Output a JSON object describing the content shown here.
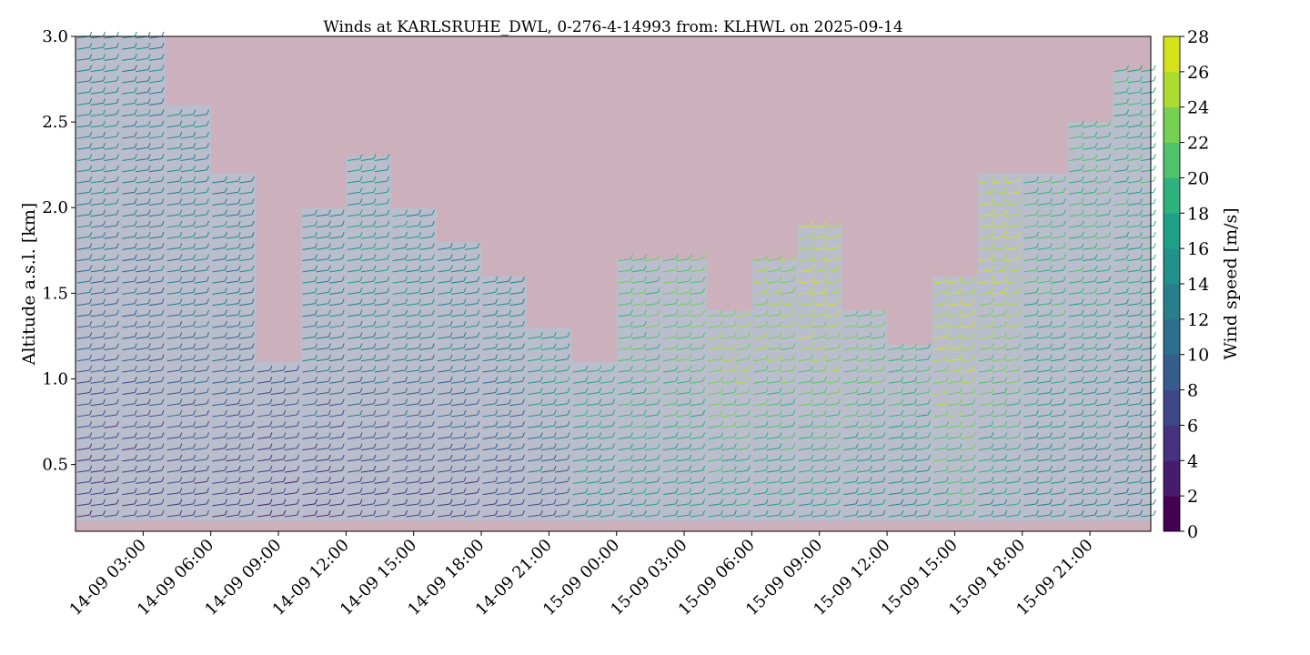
{
  "chart_data": {
    "type": "wind-barbs",
    "title": "Winds at KARLSRUHE_DWL, 0-276-4-14993 from: KLHWL on 2025-09-14",
    "xlabel": "",
    "ylabel": "Altitude a.s.l. [km]",
    "xlim_hours": [
      0,
      47.7
    ],
    "ylim": [
      0.11,
      3.0
    ],
    "x_ticks": [
      {
        "hour": 3,
        "label": "14-09 03:00"
      },
      {
        "hour": 6,
        "label": "14-09 06:00"
      },
      {
        "hour": 9,
        "label": "14-09 09:00"
      },
      {
        "hour": 12,
        "label": "14-09 12:00"
      },
      {
        "hour": 15,
        "label": "14-09 15:00"
      },
      {
        "hour": 18,
        "label": "14-09 18:00"
      },
      {
        "hour": 21,
        "label": "14-09 21:00"
      },
      {
        "hour": 24,
        "label": "15-09 00:00"
      },
      {
        "hour": 27,
        "label": "15-09 03:00"
      },
      {
        "hour": 30,
        "label": "15-09 06:00"
      },
      {
        "hour": 33,
        "label": "15-09 09:00"
      },
      {
        "hour": 36,
        "label": "15-09 12:00"
      },
      {
        "hour": 39,
        "label": "15-09 15:00"
      },
      {
        "hour": 42,
        "label": "15-09 18:00"
      },
      {
        "hour": 45,
        "label": "15-09 21:00"
      }
    ],
    "y_ticks": [
      {
        "value": 0.5,
        "label": "0.5"
      },
      {
        "value": 1.0,
        "label": "1.0"
      },
      {
        "value": 1.5,
        "label": "1.5"
      },
      {
        "value": 2.0,
        "label": "2.0"
      },
      {
        "value": 2.5,
        "label": "2.5"
      },
      {
        "value": 3.0,
        "label": "3.0"
      }
    ],
    "colorbar": {
      "label": "Wind speed [m/s]",
      "levels": [
        0,
        2,
        4,
        6,
        8,
        10,
        12,
        14,
        16,
        18,
        20,
        22,
        24,
        26,
        28
      ],
      "tick_labels": [
        "0",
        "2",
        "4",
        "6",
        "8",
        "10",
        "12",
        "14",
        "16",
        "18",
        "20",
        "22",
        "24",
        "26",
        "28"
      ],
      "colors": [
        "#440154",
        "#471b6e",
        "#46327e",
        "#3f4788",
        "#365c8d",
        "#2e6e8e",
        "#277f8e",
        "#21918c",
        "#1fa187",
        "#2db27d",
        "#4ec36b",
        "#75d054",
        "#addc30",
        "#d5e21a",
        "#fde725"
      ]
    },
    "missing_color": "#ccb0bb",
    "data_bg_color": "#b9bdcc",
    "bottom_altitude_km": 0.17,
    "profiles": [
      {
        "hour": 0,
        "top_km": 3.0,
        "speed_low": 5,
        "speed_high": 14
      },
      {
        "hour": 2,
        "top_km": 3.0,
        "speed_low": 6,
        "speed_high": 13
      },
      {
        "hour": 4,
        "top_km": 2.6,
        "speed_low": 6,
        "speed_high": 14
      },
      {
        "hour": 6,
        "top_km": 2.2,
        "speed_low": 5,
        "speed_high": 13
      },
      {
        "hour": 8,
        "top_km": 1.1,
        "speed_low": 4,
        "speed_high": 8
      },
      {
        "hour": 10,
        "top_km": 2.0,
        "speed_low": 4,
        "speed_high": 14
      },
      {
        "hour": 12,
        "top_km": 2.3,
        "speed_low": 5,
        "speed_high": 16
      },
      {
        "hour": 14,
        "top_km": 2.0,
        "speed_low": 5,
        "speed_high": 15
      },
      {
        "hour": 16,
        "top_km": 1.8,
        "speed_low": 5,
        "speed_high": 14
      },
      {
        "hour": 18,
        "top_km": 1.6,
        "speed_low": 6,
        "speed_high": 14
      },
      {
        "hour": 20,
        "top_km": 1.3,
        "speed_low": 7,
        "speed_high": 17
      },
      {
        "hour": 22,
        "top_km": 1.1,
        "speed_low": 14,
        "speed_high": 18
      },
      {
        "hour": 24,
        "top_km": 1.7,
        "speed_low": 16,
        "speed_high": 21
      },
      {
        "hour": 26,
        "top_km": 1.7,
        "speed_low": 16,
        "speed_high": 22
      },
      {
        "hour": 28,
        "top_km": 1.4,
        "speed_low": 16,
        "speed_high": 24
      },
      {
        "hour": 30,
        "top_km": 1.7,
        "speed_low": 16,
        "speed_high": 24
      },
      {
        "hour": 32,
        "top_km": 1.9,
        "speed_low": 16,
        "speed_high": 26
      },
      {
        "hour": 34,
        "top_km": 1.4,
        "speed_low": 14,
        "speed_high": 22
      },
      {
        "hour": 36,
        "top_km": 1.2,
        "speed_low": 14,
        "speed_high": 20
      },
      {
        "hour": 38,
        "top_km": 1.6,
        "speed_low": 18,
        "speed_high": 26
      },
      {
        "hour": 40,
        "top_km": 2.2,
        "speed_low": 16,
        "speed_high": 26
      },
      {
        "hour": 42,
        "top_km": 2.2,
        "speed_low": 14,
        "speed_high": 20
      },
      {
        "hour": 44,
        "top_km": 2.5,
        "speed_low": 13,
        "speed_high": 20
      },
      {
        "hour": 46,
        "top_km": 2.8,
        "speed_low": 12,
        "speed_high": 19
      }
    ]
  }
}
